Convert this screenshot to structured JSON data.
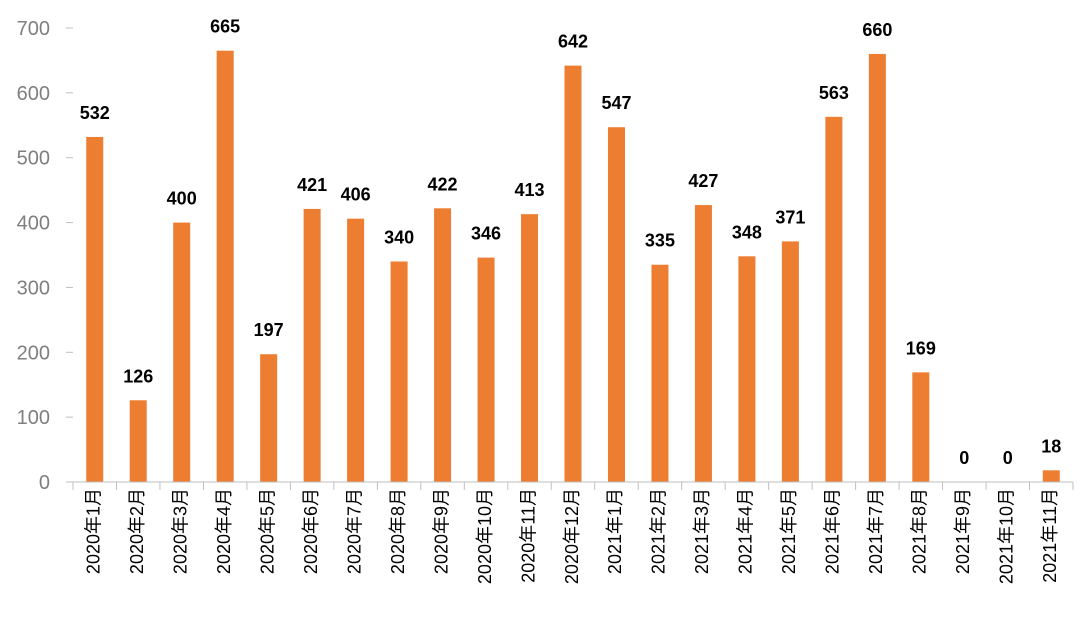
{
  "chart_data": {
    "type": "bar",
    "categories": [
      "2020年1月",
      "2020年2月",
      "2020年3月",
      "2020年4月",
      "2020年5月",
      "2020年6月",
      "2020年7月",
      "2020年8月",
      "2020年9月",
      "2020年10月",
      "2020年11月",
      "2020年12月",
      "2021年1月",
      "2021年2月",
      "2021年3月",
      "2021年4月",
      "2021年5月",
      "2021年6月",
      "2021年7月",
      "2021年8月",
      "2021年9月",
      "2021年10月",
      "2021年11月"
    ],
    "values": [
      532,
      126,
      400,
      665,
      197,
      421,
      406,
      340,
      422,
      346,
      413,
      642,
      547,
      335,
      427,
      348,
      371,
      563,
      660,
      169,
      0,
      0,
      18
    ],
    "yticks": [
      0,
      100,
      200,
      300,
      400,
      500,
      600,
      700
    ],
    "ylim": [
      0,
      700
    ],
    "grid": false,
    "legend": "none",
    "colors": {
      "bar": "#ED7D31",
      "axis": "#bfbfbf",
      "tick_text": "#7f7f7f"
    }
  }
}
